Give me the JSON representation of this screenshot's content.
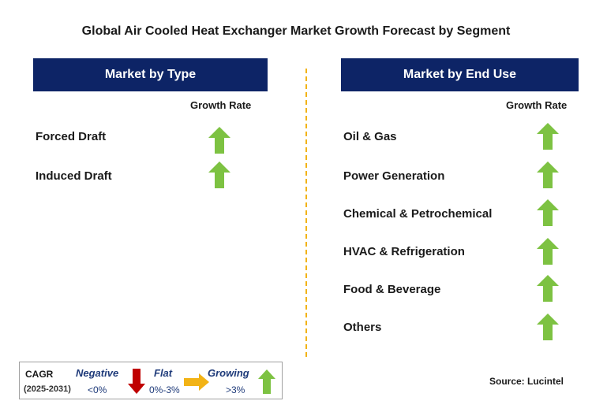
{
  "title": "Global Air Cooled Heat Exchanger Market Growth Forecast by Segment",
  "left_panel": {
    "header": "Market by Type",
    "growth_rate_label": "Growth Rate",
    "items": [
      "Forced Draft",
      "Induced Draft"
    ]
  },
  "right_panel": {
    "header": "Market by End Use",
    "growth_rate_label": "Growth Rate",
    "items": [
      "Oil & Gas",
      "Power Generation",
      "Chemical & Petrochemical",
      "HVAC & Refrigeration",
      "Food & Beverage",
      "Others"
    ]
  },
  "legend": {
    "cagr": "CAGR",
    "years": "(2025-2031)",
    "negative_label": "Negative",
    "negative_value": "<0%",
    "flat_label": "Flat",
    "flat_value": "0%-3%",
    "growing_label": "Growing",
    "growing_value": ">3%"
  },
  "source": "Source: Lucintel",
  "colors": {
    "header_bg": "#0d2466",
    "growing_arrow": "#7dc242",
    "negative_arrow": "#c00000",
    "flat_arrow": "#f2b316",
    "divider": "#f2b316"
  }
}
